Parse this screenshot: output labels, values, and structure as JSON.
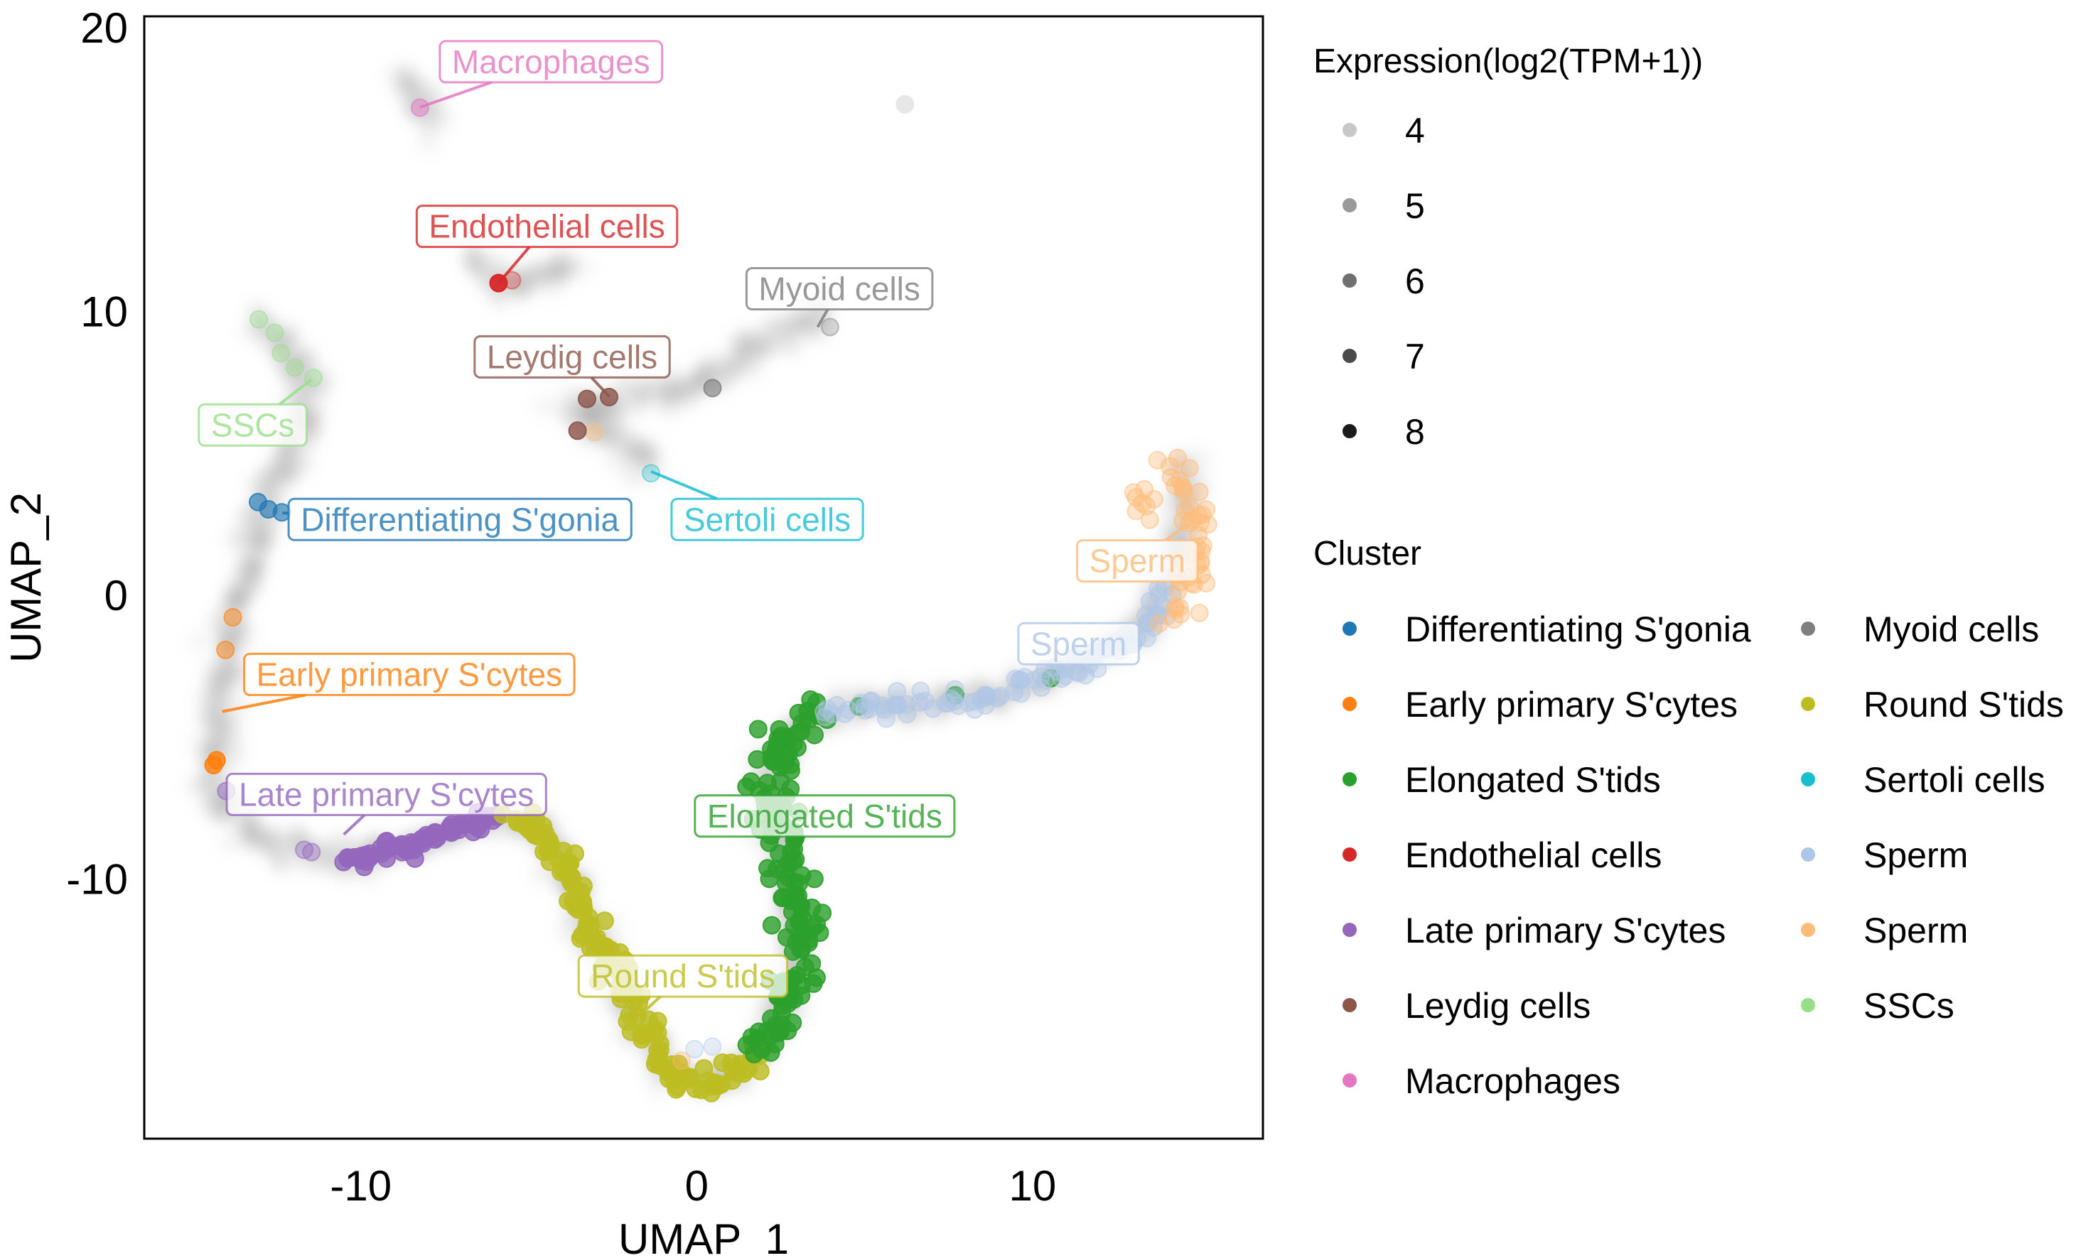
{
  "chart_data": {
    "type": "scatter",
    "title": "",
    "xlabel": "UMAP_1",
    "ylabel": "UMAP_2",
    "xlim": [
      -16.45,
      16.86
    ],
    "ylim": [
      -19.15,
      20.4
    ],
    "xticks": [
      -10,
      0,
      10
    ],
    "yticks": [
      -10,
      0,
      10,
      20
    ],
    "xtick_labels": [
      "-10",
      "0",
      "10"
    ],
    "ytick_labels": [
      "-10",
      "0",
      "10",
      "20"
    ],
    "grid": false,
    "legend": {
      "placement": "right",
      "expression": {
        "title": "Expression(log2(TPM+1))",
        "levels": [
          {
            "label": "4",
            "value": 4,
            "gray": "#c8c8c8"
          },
          {
            "label": "5",
            "value": 5,
            "gray": "#9a9a9a"
          },
          {
            "label": "6",
            "value": 6,
            "gray": "#707070"
          },
          {
            "label": "7",
            "value": 7,
            "gray": "#4a4a4a"
          },
          {
            "label": "8",
            "value": 8,
            "gray": "#1a1a1a"
          }
        ]
      },
      "cluster": {
        "title": "Cluster",
        "columns": [
          [
            "Differentiating S'gonia",
            "Early primary S'cytes",
            "Elongated S'tids",
            "Endothelial cells",
            "Late primary S'cytes",
            "Leydig cells",
            "Macrophages"
          ],
          [
            "Myoid cells",
            "Round S'tids",
            "Sertoli cells",
            "Sperm",
            "Sperm",
            "SSCs"
          ]
        ]
      }
    },
    "clusters": [
      {
        "id": "diff_sgonia",
        "name": "Differentiating S'gonia",
        "color": "#1f77b4"
      },
      {
        "id": "early_scytes",
        "name": "Early primary S'cytes",
        "color": "#ff7f0e"
      },
      {
        "id": "elongated",
        "name": "Elongated S'tids",
        "color": "#2ca02c"
      },
      {
        "id": "endothelial",
        "name": "Endothelial cells",
        "color": "#d62728"
      },
      {
        "id": "late_scytes",
        "name": "Late primary S'cytes",
        "color": "#9467bd"
      },
      {
        "id": "leydig",
        "name": "Leydig cells",
        "color": "#8c564b"
      },
      {
        "id": "macrophages",
        "name": "Macrophages",
        "color": "#e377c2"
      },
      {
        "id": "myoid",
        "name": "Myoid cells",
        "color": "#7f7f7f"
      },
      {
        "id": "round",
        "name": "Round S'tids",
        "color": "#bcbd22"
      },
      {
        "id": "sertoli",
        "name": "Sertoli cells",
        "color": "#17becf"
      },
      {
        "id": "sperm_blue",
        "name": "Sperm",
        "color": "#aec7e8"
      },
      {
        "id": "sperm_orange",
        "name": "Sperm",
        "color": "#ffbb78"
      },
      {
        "id": "sscs",
        "name": "SSCs",
        "color": "#98df8a"
      }
    ],
    "background_paths": [
      [
        [
          -13.02,
          9.72
        ],
        [
          -12.22,
          8.69
        ],
        [
          -11.47,
          7.61
        ],
        [
          -11.75,
          5.87
        ],
        [
          -12.35,
          4.46
        ],
        [
          -12.94,
          3.04
        ],
        [
          -13.34,
          1.16
        ],
        [
          -13.73,
          -0.72
        ],
        [
          -14.01,
          -2.13
        ],
        [
          -14.25,
          -4.01
        ],
        [
          -14.41,
          -5.89
        ],
        [
          -14.13,
          -7.31
        ],
        [
          -13.14,
          -8.48
        ],
        [
          -11.55,
          -9.09
        ],
        [
          -10.35,
          -9.28
        ],
        [
          -8.76,
          -9.0
        ],
        [
          -7.17,
          -8.25
        ],
        [
          -5.97,
          -7.87
        ],
        [
          -4.58,
          -8.34
        ],
        [
          -3.99,
          -9.66
        ],
        [
          -3.19,
          -11.54
        ],
        [
          -2.39,
          -13.42
        ],
        [
          -1.6,
          -15.3
        ],
        [
          -0.8,
          -16.72
        ],
        [
          0.19,
          -17.28
        ],
        [
          1.18,
          -16.72
        ],
        [
          2.18,
          -15.54
        ],
        [
          2.78,
          -13.89
        ],
        [
          2.98,
          -12.01
        ],
        [
          2.78,
          -10.13
        ],
        [
          2.3,
          -8.25
        ],
        [
          2.18,
          -6.37
        ],
        [
          2.78,
          -4.72
        ],
        [
          4.37,
          -4.01
        ],
        [
          7.16,
          -3.78
        ],
        [
          9.54,
          -3.31
        ],
        [
          11.13,
          -2.6
        ],
        [
          12.72,
          -1.66
        ],
        [
          13.52,
          -0.96
        ],
        [
          13.92,
          0.22
        ],
        [
          14.51,
          2.1
        ],
        [
          14.51,
          3.98
        ],
        [
          14.31,
          4.68
        ]
      ],
      [
        [
          -3.79,
          6.57
        ],
        [
          -2.39,
          6.81
        ],
        [
          0.0,
          7.37
        ],
        [
          1.6,
          8.45
        ],
        [
          3.18,
          9.63
        ],
        [
          3.78,
          10.33
        ]
      ],
      [
        [
          -3.79,
          6.57
        ],
        [
          -3.0,
          5.87
        ],
        [
          -2.0,
          5.4
        ],
        [
          -1.36,
          4.36
        ]
      ],
      [
        [
          -6.57,
          11.98
        ],
        [
          -6.17,
          11.14
        ],
        [
          -5.38,
          10.95
        ],
        [
          -4.58,
          11.28
        ],
        [
          -3.59,
          11.51
        ]
      ],
      [
        [
          -8.64,
          18.35
        ],
        [
          -8.44,
          17.65
        ],
        [
          -8.24,
          17.18
        ],
        [
          -7.97,
          16.47
        ]
      ]
    ],
    "background_points": [
      [
        6.2,
        17.3,
        4
      ]
    ],
    "cluster_segments": [
      {
        "cluster": "sscs",
        "path": [
          [
            -13.02,
            9.72
          ],
          [
            -12.54,
            9.15
          ],
          [
            -12.26,
            8.44
          ],
          [
            -12.14,
            8.2
          ],
          [
            -11.47,
            7.61
          ]
        ],
        "n": 5,
        "spread": 0.05,
        "expr": 4.5
      },
      {
        "cluster": "diff_sgonia",
        "path": [
          [
            -13.06,
            3.27
          ],
          [
            -12.82,
            3.04
          ],
          [
            -12.34,
            2.9
          ]
        ],
        "n": 3,
        "spread": 0.02,
        "expr": 6
      },
      {
        "cluster": "early_scytes",
        "path": [
          [
            -13.81,
            -0.77
          ],
          [
            -14.05,
            -1.9
          ]
        ],
        "n": 2,
        "spread": 0.02,
        "expr": 5
      },
      {
        "cluster": "early_scytes",
        "path": [
          [
            -14.33,
            -5.8
          ],
          [
            -14.41,
            -5.99
          ]
        ],
        "n": 2,
        "spread": 0.02,
        "expr": 7
      },
      {
        "cluster": "late_scytes",
        "path": [
          [
            -14.01,
            -6.9
          ],
          [
            -14.01,
            -6.9
          ]
        ],
        "n": 1,
        "spread": 0.0,
        "expr": 5
      },
      {
        "cluster": "late_scytes",
        "path": [
          [
            -11.67,
            -8.95
          ],
          [
            -11.47,
            -9.05
          ]
        ],
        "n": 2,
        "spread": 0.02,
        "expr": 4.5
      },
      {
        "cluster": "late_scytes",
        "path": [
          [
            -10.43,
            -9.28
          ],
          [
            -8.76,
            -9.0
          ],
          [
            -7.17,
            -8.25
          ],
          [
            -5.97,
            -7.87
          ]
        ],
        "n": 60,
        "spread": 0.15,
        "expr": 7
      },
      {
        "cluster": "round",
        "path": [
          [
            -5.6,
            -7.9
          ],
          [
            -4.58,
            -8.34
          ],
          [
            -3.99,
            -9.66
          ],
          [
            -3.19,
            -11.54
          ],
          [
            -2.39,
            -13.42
          ],
          [
            -1.6,
            -15.3
          ],
          [
            -0.8,
            -16.72
          ],
          [
            0.19,
            -17.28
          ],
          [
            1.18,
            -16.72
          ],
          [
            1.8,
            -16.0
          ]
        ],
        "n": 140,
        "spread": 0.22,
        "expr": 7
      },
      {
        "cluster": "elongated",
        "path": [
          [
            1.9,
            -16.0
          ],
          [
            2.18,
            -15.54
          ],
          [
            2.78,
            -13.89
          ],
          [
            3.1,
            -12.5
          ],
          [
            2.98,
            -12.01
          ],
          [
            2.78,
            -10.13
          ],
          [
            2.3,
            -8.25
          ],
          [
            2.18,
            -6.37
          ],
          [
            2.78,
            -4.72
          ],
          [
            3.6,
            -4.1
          ]
        ],
        "n": 150,
        "spread": 0.3,
        "expr": 7
      },
      {
        "cluster": "elongated",
        "path": [
          [
            4.8,
            -4.0
          ],
          [
            5.6,
            -4.1
          ],
          [
            10.5,
            -2.9
          ]
        ],
        "n": 3,
        "spread": 0.05,
        "expr": 7
      },
      {
        "cluster": "sperm_blue",
        "path": [
          [
            3.8,
            -4.0
          ],
          [
            7.16,
            -3.78
          ],
          [
            9.54,
            -3.31
          ],
          [
            11.13,
            -2.6
          ],
          [
            12.72,
            -1.66
          ],
          [
            13.52,
            -0.96
          ],
          [
            13.92,
            0.22
          ]
        ],
        "n": 90,
        "spread": 0.22,
        "expr": 4.5
      },
      {
        "cluster": "sperm_orange",
        "path": [
          [
            14.6,
            4.7
          ],
          [
            14.9,
            3.6
          ],
          [
            14.7,
            2.4
          ],
          [
            14.8,
            1.2
          ],
          [
            14.5,
            0.0
          ],
          [
            14.0,
            -0.6
          ]
        ],
        "n": 45,
        "spread": 0.35,
        "expr": 4.5
      },
      {
        "cluster": "sperm_orange",
        "path": [
          [
            13.1,
            3.7
          ],
          [
            13.5,
            3.3
          ],
          [
            13.2,
            2.8
          ]
        ],
        "n": 8,
        "spread": 0.25,
        "expr": 4.5
      },
      {
        "cluster": "sperm_orange",
        "path": [
          [
            -3.05,
            5.75
          ],
          [
            -3.05,
            5.75
          ]
        ],
        "n": 1,
        "spread": 0.0,
        "expr": 4.5
      },
      {
        "cluster": "sperm_blue",
        "path": [
          [
            -0.1,
            -16.0
          ],
          [
            0.45,
            -15.9
          ]
        ],
        "n": 2,
        "spread": 0.02,
        "expr": 4
      },
      {
        "cluster": "sperm_orange",
        "path": [
          [
            -0.45,
            -16.4
          ],
          [
            -0.45,
            -16.4
          ]
        ],
        "n": 1,
        "spread": 0.0,
        "expr": 4
      },
      {
        "cluster": "leydig",
        "path": [
          [
            -3.23,
            6.9
          ],
          [
            -2.6,
            6.95
          ]
        ],
        "n": 2,
        "spread": 0.02,
        "expr": 7
      },
      {
        "cluster": "leydig",
        "path": [
          [
            -3.55,
            5.8
          ],
          [
            -3.55,
            5.8
          ]
        ],
        "n": 1,
        "spread": 0.0,
        "expr": 7
      },
      {
        "cluster": "endothelial",
        "path": [
          [
            -5.9,
            11.0
          ],
          [
            -5.9,
            11.0
          ]
        ],
        "n": 1,
        "spread": 0.0,
        "expr": 8
      },
      {
        "cluster": "endothelial",
        "path": [
          [
            -5.5,
            11.1
          ],
          [
            -5.5,
            11.1
          ]
        ],
        "n": 1,
        "spread": 0.0,
        "expr": 4
      },
      {
        "cluster": "macrophages",
        "path": [
          [
            -8.24,
            17.18
          ],
          [
            -8.24,
            17.18
          ]
        ],
        "n": 1,
        "spread": 0.0,
        "expr": 5
      },
      {
        "cluster": "myoid",
        "path": [
          [
            0.47,
            7.3
          ],
          [
            0.47,
            7.3
          ]
        ],
        "n": 1,
        "spread": 0.0,
        "expr": 6
      },
      {
        "cluster": "myoid",
        "path": [
          [
            3.97,
            9.45
          ],
          [
            3.97,
            9.45
          ]
        ],
        "n": 1,
        "spread": 0.0,
        "expr": 4
      },
      {
        "cluster": "sertoli",
        "path": [
          [
            -1.36,
            4.3
          ],
          [
            -1.36,
            4.3
          ]
        ],
        "n": 1,
        "spread": 0.0,
        "expr": 4
      }
    ],
    "annotations": [
      {
        "cluster": "macrophages",
        "text": "Macrophages",
        "label_at": [
          -4.34,
          18.8
        ],
        "point_at": [
          -8.24,
          17.2
        ]
      },
      {
        "cluster": "endothelial",
        "text": "Endothelial cells",
        "label_at": [
          -4.46,
          13.0
        ],
        "point_at": [
          -5.9,
          11.0
        ]
      },
      {
        "cluster": "myoid",
        "text": "Myoid cells",
        "label_at": [
          4.25,
          10.8
        ],
        "point_at": [
          3.6,
          9.45
        ]
      },
      {
        "cluster": "leydig",
        "text": "Leydig cells",
        "label_at": [
          -3.71,
          8.4
        ],
        "point_at": [
          -2.6,
          7.0
        ]
      },
      {
        "cluster": "sscs",
        "text": "SSCs",
        "label_at": [
          -13.22,
          6.0
        ],
        "point_at": [
          -11.47,
          7.6
        ]
      },
      {
        "cluster": "diff_sgonia",
        "text": "Differentiating S'gonia",
        "label_at": [
          -7.05,
          2.67
        ],
        "point_at": [
          -12.34,
          2.9
        ]
      },
      {
        "cluster": "sertoli",
        "text": "Sertoli cells",
        "label_at": [
          2.1,
          2.67
        ],
        "point_at": [
          -1.36,
          4.36
        ]
      },
      {
        "cluster": "sperm_orange",
        "text": "Sperm",
        "label_at": [
          13.12,
          1.21
        ],
        "point_at": [
          14.6,
          2.48
        ]
      },
      {
        "cluster": "sperm_blue",
        "text": "Sperm",
        "label_at": [
          11.37,
          -1.71
        ],
        "point_at": [
          12.41,
          -1.0
        ]
      },
      {
        "cluster": "early_scytes",
        "text": "Early primary S'cytes",
        "label_at": [
          -8.56,
          -2.79
        ],
        "point_at": [
          -14.13,
          -4.1
        ]
      },
      {
        "cluster": "late_scytes",
        "text": "Late primary S'cytes",
        "label_at": [
          -9.24,
          -7.02
        ],
        "point_at": [
          -10.51,
          -8.43
        ]
      },
      {
        "cluster": "elongated",
        "text": "Elongated S'tids",
        "label_at": [
          3.81,
          -7.78
        ],
        "point_at": [
          2.54,
          -9.33
        ]
      },
      {
        "cluster": "round",
        "text": "Round S'tids",
        "label_at": [
          -0.41,
          -13.42
        ],
        "point_at": [
          -1.72,
          -14.83
        ]
      }
    ]
  }
}
